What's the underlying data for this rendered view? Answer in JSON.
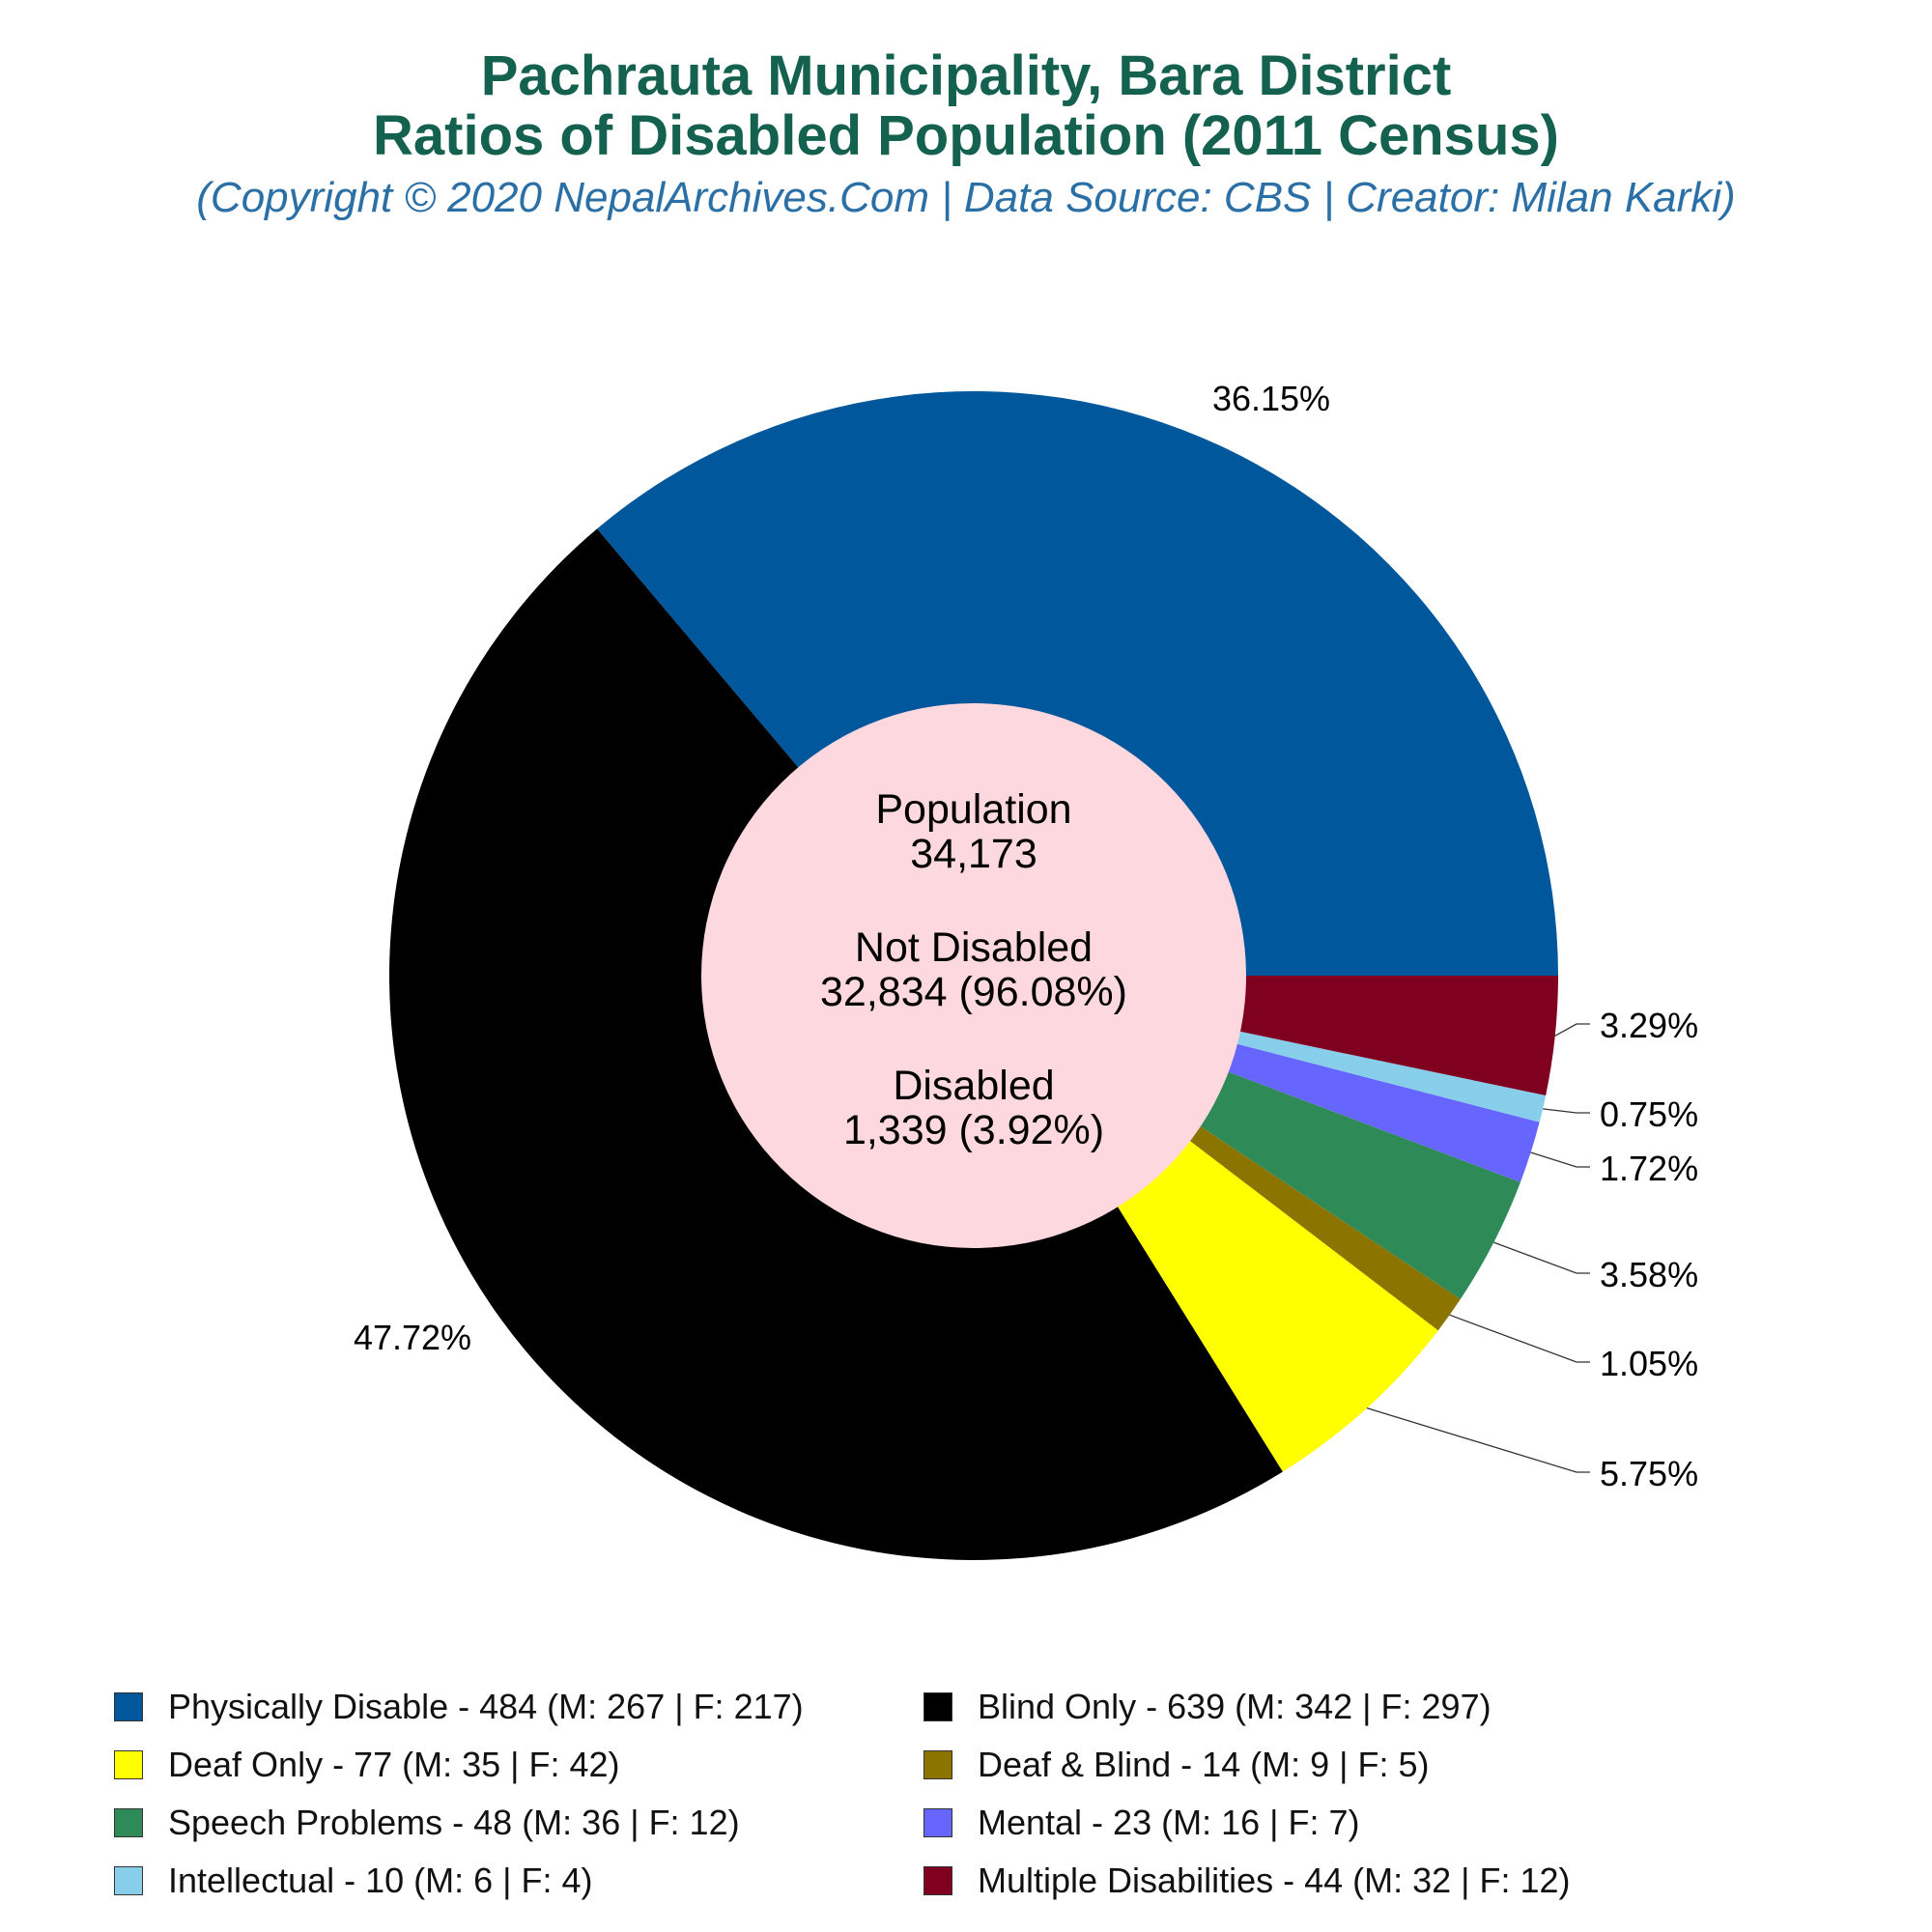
{
  "header": {
    "title_line1": "Pachrauta Municipality, Bara District",
    "title_line2": "Ratios of Disabled Population (2011 Census)",
    "subtitle": "(Copyright © 2020 NepalArchives.Com | Data Source: CBS | Creator: Milan Karki)"
  },
  "center": {
    "population_label": "Population",
    "population_value": "34,173",
    "not_disabled_label": "Not Disabled",
    "not_disabled_value": "32,834 (96.08%)",
    "disabled_label": "Disabled",
    "disabled_value": "1,339 (3.92%)"
  },
  "chart_data": {
    "type": "pie",
    "title": "Pachrauta Municipality, Bara District Ratios of Disabled Population (2011 Census)",
    "donut": true,
    "start": "3 o'clock",
    "direction": "counterclockwise",
    "slices": [
      {
        "name": "Physically Disable",
        "value": 484,
        "male": 267,
        "female": 217,
        "percent_label": "36.15%",
        "color": "#01579b"
      },
      {
        "name": "Blind Only",
        "value": 639,
        "male": 342,
        "female": 297,
        "percent_label": "47.72%",
        "color": "#000000"
      },
      {
        "name": "Deaf Only",
        "value": 77,
        "male": 35,
        "female": 42,
        "percent_label": "5.75%",
        "color": "#ffff00"
      },
      {
        "name": "Deaf & Blind",
        "value": 14,
        "male": 9,
        "female": 5,
        "percent_label": "1.05%",
        "color": "#8b7500"
      },
      {
        "name": "Speech Problems",
        "value": 48,
        "male": 36,
        "female": 12,
        "percent_label": "3.58%",
        "color": "#2e8b57"
      },
      {
        "name": "Mental",
        "value": 23,
        "male": 16,
        "female": 7,
        "percent_label": "1.72%",
        "color": "#6666ff"
      },
      {
        "name": "Intellectual",
        "value": 10,
        "male": 6,
        "female": 4,
        "percent_label": "0.75%",
        "color": "#87ceeb"
      },
      {
        "name": "Multiple Disabilities",
        "value": 44,
        "male": 32,
        "female": 12,
        "percent_label": "3.29%",
        "color": "#800020"
      }
    ],
    "center_color": "#fdd8de",
    "legend_placement": "bottom"
  },
  "legend": [
    {
      "text": "Physically Disable - 484 (M: 267 | F: 217)",
      "color": "#01579b"
    },
    {
      "text": "Blind Only - 639 (M: 342 | F: 297)",
      "color": "#000000"
    },
    {
      "text": "Deaf Only - 77 (M: 35 | F: 42)",
      "color": "#ffff00"
    },
    {
      "text": "Deaf & Blind - 14 (M: 9 | F: 5)",
      "color": "#8b7500"
    },
    {
      "text": "Speech Problems - 48 (M: 36 | F: 12)",
      "color": "#2e8b57"
    },
    {
      "text": "Mental - 23 (M: 16 | F: 7)",
      "color": "#6666ff"
    },
    {
      "text": "Intellectual - 10 (M: 6 | F: 4)",
      "color": "#87ceeb"
    },
    {
      "text": "Multiple Disabilities - 44 (M: 32 | F: 12)",
      "color": "#800020"
    }
  ]
}
